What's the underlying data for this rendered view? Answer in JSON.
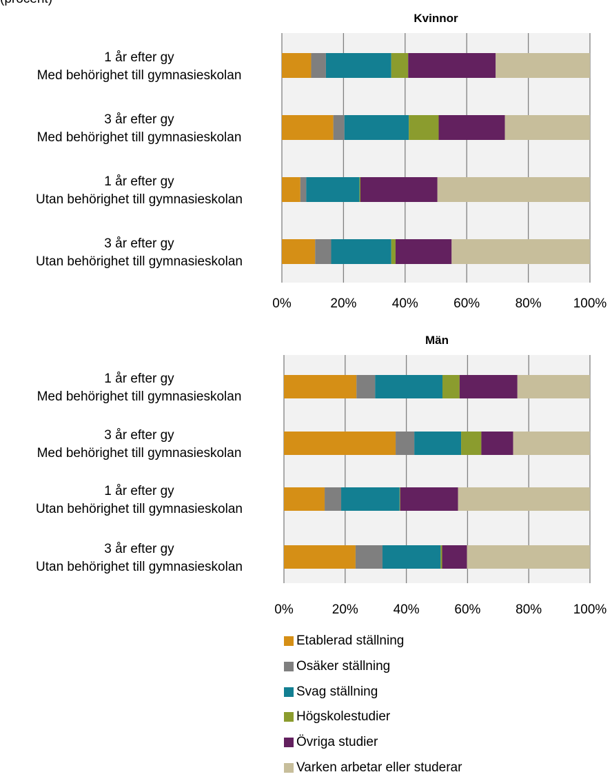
{
  "header_fragment": "(procent)",
  "chart_data": [
    {
      "type": "bar",
      "orientation": "horizontal",
      "stacked": true,
      "title": "Kvinnor",
      "categories": [
        [
          "1 år efter gy",
          "Med behörighet till gymnasieskolan"
        ],
        [
          "3 år efter gy",
          "Med behörighet till gymnasieskolan"
        ],
        [
          "1 år efter gy",
          "Utan behörighet till gymnasieskolan"
        ],
        [
          "3 år efter gy",
          "Utan behörighet till gymnasieskolan"
        ]
      ],
      "xlim": [
        0,
        100
      ],
      "xticks": [
        "0%",
        "20%",
        "40%",
        "60%",
        "80%",
        "100%"
      ],
      "grid": true,
      "series": [
        {
          "name": "Etablerad ställning",
          "values": [
            9.5,
            16.7,
            6.0,
            10.8
          ]
        },
        {
          "name": "Osäker ställning",
          "values": [
            4.8,
            3.6,
            1.9,
            5.2
          ]
        },
        {
          "name": "Svag ställning",
          "values": [
            21.2,
            20.9,
            17.3,
            19.5
          ]
        },
        {
          "name": "Högskolestudier",
          "values": [
            5.5,
            9.7,
            0.3,
            1.4
          ]
        },
        {
          "name": "Övriga studier",
          "values": [
            28.4,
            21.5,
            25.0,
            18.2
          ]
        },
        {
          "name": "Varken arbetar eller studerar",
          "values": [
            30.6,
            27.6,
            49.5,
            44.9
          ]
        }
      ]
    },
    {
      "type": "bar",
      "orientation": "horizontal",
      "stacked": true,
      "title": "Män",
      "categories": [
        [
          "1 år efter gy",
          "Med behörighet till gymnasieskolan"
        ],
        [
          "3 år efter gy",
          "Med behörighet till gymnasieskolan"
        ],
        [
          "1 år efter gy",
          "Utan behörighet till gymnasieskolan"
        ],
        [
          "3 år efter gy",
          "Utan behörighet till gymnasieskolan"
        ]
      ],
      "xlim": [
        0,
        100
      ],
      "xticks": [
        "0%",
        "20%",
        "40%",
        "60%",
        "80%",
        "100%"
      ],
      "grid": true,
      "series": [
        {
          "name": "Etablerad ställning",
          "values": [
            23.7,
            36.5,
            13.3,
            23.4
          ]
        },
        {
          "name": "Osäker ställning",
          "values": [
            6.1,
            6.1,
            5.4,
            8.8
          ]
        },
        {
          "name": "Svag ställning",
          "values": [
            22.0,
            15.3,
            19.1,
            19.0
          ]
        },
        {
          "name": "Högskolestudier",
          "values": [
            5.6,
            6.6,
            0.2,
            0.5
          ]
        },
        {
          "name": "Övriga studier",
          "values": [
            18.9,
            10.4,
            18.9,
            8.1
          ]
        },
        {
          "name": "Varken arbetar eller studerar",
          "values": [
            23.7,
            25.1,
            43.1,
            40.2
          ]
        }
      ]
    }
  ],
  "colors": {
    "Etablerad ställning": "#D58F16",
    "Osäker ställning": "#7F7F7F",
    "Svag ställning": "#137F92",
    "Högskolestudier": "#8B9C2E",
    "Övriga studier": "#63215F",
    "Varken arbetar eller studerar": "#C7BE9B",
    "plot_background": "#F2F2F2",
    "gridline": "#808080"
  },
  "legend": {
    "placement": "bottom",
    "items": [
      "Etablerad ställning",
      "Osäker ställning",
      "Svag ställning",
      "Högskolestudier",
      "Övriga studier",
      "Varken arbetar eller studerar"
    ]
  }
}
